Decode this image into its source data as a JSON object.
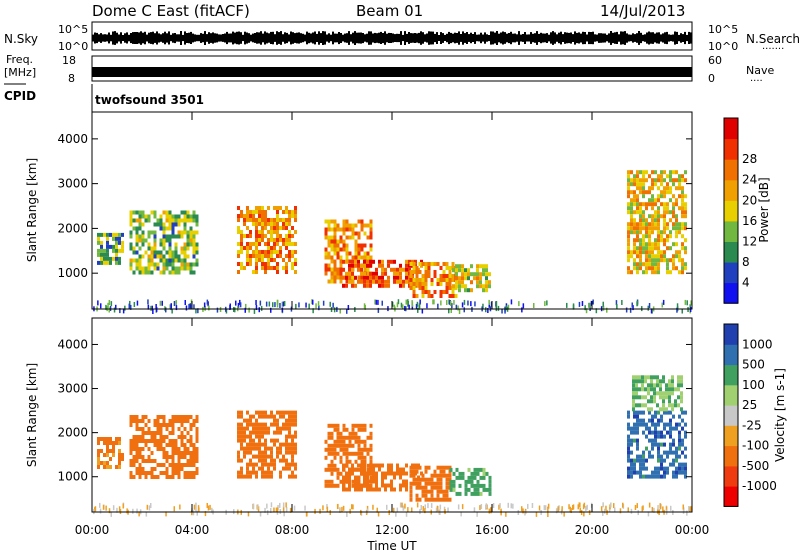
{
  "header": {
    "title": "Dome C East (fitACF)",
    "beam": "Beam 01",
    "date": "14/Jul/2013"
  },
  "strips": {
    "nsky_label": "N.Sky",
    "nsearch_label": "N.Search",
    "nsearch_dots": "·······",
    "noise_ticks": [
      "10^5",
      "10^0"
    ],
    "freq_label_line1": "Freq.",
    "freq_label_line2": "[MHz]",
    "freq_ticks": [
      "18",
      "8"
    ],
    "nave_label": "Nave",
    "nave_dots": "····",
    "nave_ticks": [
      "60",
      "0"
    ],
    "cpid_label": "CPID",
    "cpid_value": "twofsound 3501"
  },
  "colors": {
    "power_scale": [
      "#1010f0",
      "#2040c0",
      "#2a8a50",
      "#70b840",
      "#e8d000",
      "#f0a000",
      "#f07000",
      "#f03000",
      "#e00000"
    ],
    "velocity_scale": [
      "#ee0000",
      "#f03a10",
      "#f07010",
      "#f0a020",
      "#c8c8c8",
      "#a0d070",
      "#40a060",
      "#3070b0",
      "#2040b0"
    ]
  },
  "chart_data": [
    {
      "type": "heatmap",
      "panel": "power",
      "ylabel": "Slant Range [km]",
      "ylim": [
        200,
        4600
      ],
      "xlim": [
        0,
        24
      ],
      "yticks": [
        1000,
        2000,
        3000,
        4000
      ],
      "colorbar_label": "Power [dB]",
      "colorbar_ticks": [
        "4",
        "8",
        "12",
        "16",
        "20",
        "24",
        "28"
      ],
      "colorbar_range": [
        0,
        32
      ],
      "echo_regions": [
        {
          "t0": 0.2,
          "t1": 1.2,
          "r0": 1200,
          "r1": 1900,
          "power": 10
        },
        {
          "t0": 1.5,
          "t1": 4.2,
          "r0": 1000,
          "r1": 2400,
          "power": 12
        },
        {
          "t0": 5.8,
          "t1": 8.2,
          "r0": 1000,
          "r1": 2500,
          "power": 22
        },
        {
          "t0": 9.3,
          "t1": 11.2,
          "r0": 800,
          "r1": 2200,
          "power": 22
        },
        {
          "t0": 10.0,
          "t1": 13.2,
          "r0": 700,
          "r1": 1300,
          "power": 26
        },
        {
          "t0": 12.7,
          "t1": 14.6,
          "r0": 450,
          "r1": 1250,
          "power": 22
        },
        {
          "t0": 14.4,
          "t1": 15.9,
          "r0": 600,
          "r1": 1200,
          "power": 16
        },
        {
          "t0": 21.4,
          "t1": 23.8,
          "r0": 1000,
          "r1": 3300,
          "power": 18
        }
      ]
    },
    {
      "type": "heatmap",
      "panel": "velocity",
      "ylabel": "Slant Range [km]",
      "xlabel": "Time UT",
      "ylim": [
        200,
        4600
      ],
      "xlim": [
        0,
        24
      ],
      "yticks": [
        1000,
        2000,
        3000,
        4000
      ],
      "xticks": [
        "00:00",
        "04:00",
        "08:00",
        "12:00",
        "16:00",
        "20:00",
        "00:00"
      ],
      "colorbar_label": "Velocity [m s-1]",
      "colorbar_ticks": [
        "-1000",
        "-500",
        "-100",
        "-25",
        "25",
        "100",
        "500",
        "1000"
      ],
      "echo_regions": [
        {
          "t0": 0.2,
          "t1": 1.2,
          "r0": 1200,
          "r1": 1900,
          "velocity": -150
        },
        {
          "t0": 1.5,
          "t1": 4.2,
          "r0": 1000,
          "r1": 2400,
          "velocity": -200
        },
        {
          "t0": 5.8,
          "t1": 8.2,
          "r0": 1000,
          "r1": 2500,
          "velocity": -300
        },
        {
          "t0": 9.3,
          "t1": 11.2,
          "r0": 800,
          "r1": 2200,
          "velocity": -250
        },
        {
          "t0": 10.0,
          "t1": 13.2,
          "r0": 700,
          "r1": 1300,
          "velocity": -300
        },
        {
          "t0": 12.7,
          "t1": 14.3,
          "r0": 450,
          "r1": 1250,
          "velocity": -250
        },
        {
          "t0": 14.3,
          "t1": 15.9,
          "r0": 600,
          "r1": 1200,
          "velocity": 150
        },
        {
          "t0": 21.4,
          "t1": 23.8,
          "r0": 1000,
          "r1": 2500,
          "velocity": 800
        },
        {
          "t0": 21.6,
          "t1": 23.6,
          "r0": 2500,
          "r1": 3300,
          "velocity": 100
        }
      ]
    }
  ]
}
